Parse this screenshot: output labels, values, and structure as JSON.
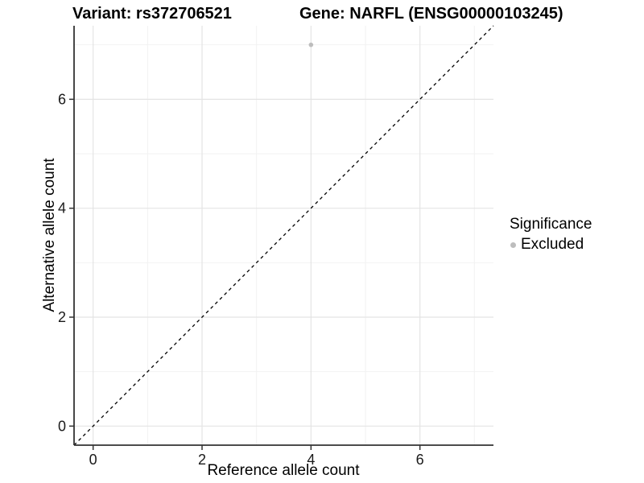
{
  "titles": {
    "variant": "Variant: rs372706521",
    "gene": "Gene: NARFL (ENSG00000103245)"
  },
  "axes": {
    "x": {
      "label": "Reference allele count",
      "tick_labels": [
        "0",
        "2",
        "4",
        "6"
      ]
    },
    "y": {
      "label": "Alternative allele count",
      "tick_labels": [
        "0",
        "2",
        "4",
        "6"
      ]
    }
  },
  "legend": {
    "title": "Significance",
    "items": [
      {
        "label": "Excluded",
        "color": "#bdbdbd"
      }
    ]
  },
  "chart_data": {
    "type": "scatter",
    "title": "Variant: rs372706521 | Gene: NARFL (ENSG00000103245)",
    "xlabel": "Reference allele count",
    "ylabel": "Alternative allele count",
    "xlim": [
      -0.35,
      7.35
    ],
    "ylim": [
      -0.35,
      7.35
    ],
    "x_major_ticks": [
      0,
      2,
      4,
      6
    ],
    "x_minor_ticks": [
      1,
      3,
      5,
      7
    ],
    "y_major_ticks": [
      0,
      2,
      4,
      6
    ],
    "y_minor_ticks": [
      1,
      3,
      5,
      7
    ],
    "grid": "major+minor",
    "legend_position": "right",
    "series": [
      {
        "name": "Excluded",
        "color": "#bdbdbd",
        "points": [
          {
            "x": 4,
            "y": 7
          }
        ]
      }
    ],
    "reference_line": {
      "slope": 1,
      "intercept": 0,
      "style": "dashed",
      "color": "#000000"
    }
  },
  "colors": {
    "background": "#ffffff",
    "grid_major": "#e4e4e4",
    "grid_minor": "#f2f2f2",
    "axis_line": "#333333",
    "tick_mark": "#333333",
    "text": "#000000",
    "point": "#bdbdbd"
  }
}
